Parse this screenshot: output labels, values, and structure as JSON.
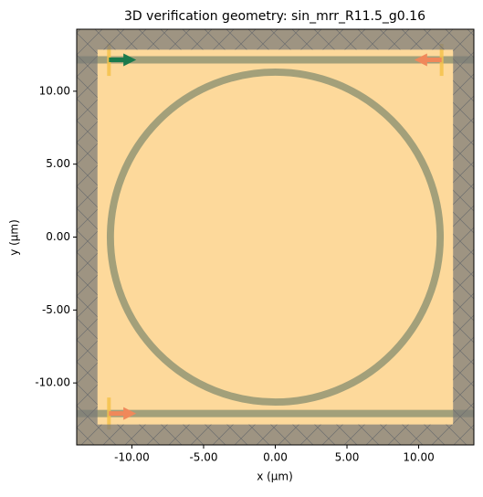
{
  "chart_data": {
    "type": "layout",
    "title": "3D verification geometry: sin_mrr_R11.5_g0.16",
    "xlabel": "x (µm)",
    "ylabel": "y (µm)",
    "xlim": [
      -13.85,
      13.85
    ],
    "ylim": [
      -14.25,
      14.25
    ],
    "xticks": [
      {
        "value": -10,
        "label": "-10.00"
      },
      {
        "value": -5,
        "label": "-5.00"
      },
      {
        "value": 0,
        "label": "0.00"
      },
      {
        "value": 5,
        "label": "5.00"
      },
      {
        "value": 10,
        "label": "10.00"
      }
    ],
    "yticks": [
      {
        "value": -10,
        "label": "-10.00"
      },
      {
        "value": -5,
        "label": "-5.00"
      },
      {
        "value": 0,
        "label": "0.00"
      },
      {
        "value": 5,
        "label": "5.00"
      },
      {
        "value": 10,
        "label": "10.00"
      }
    ],
    "domain": {
      "xlim": [
        -12.4,
        12.4
      ],
      "ylim": [
        -12.85,
        12.85
      ],
      "color": "#fdd99b"
    },
    "waveguides": {
      "y": [
        12.15,
        -12.1
      ],
      "width": 0.5,
      "color": "#a3a07a"
    },
    "ring": {
      "radius": 11.5,
      "width": 0.5,
      "color": "#a3a07a"
    },
    "arrows": [
      {
        "x": -11.6,
        "y": 12.15,
        "dx": 1.9,
        "color": "#1b7a4c"
      },
      {
        "x": 11.6,
        "y": 12.15,
        "dx": -1.9,
        "color": "#f0885a"
      },
      {
        "x": -11.6,
        "y": -12.1,
        "dx": 1.9,
        "color": "#f0885a"
      }
    ],
    "monitors": {
      "x": [
        -11.6,
        11.6,
        -11.6
      ],
      "y": [
        12.15,
        12.15,
        -12.1
      ],
      "half_length": 1.1,
      "color": "#f5c24a"
    }
  }
}
